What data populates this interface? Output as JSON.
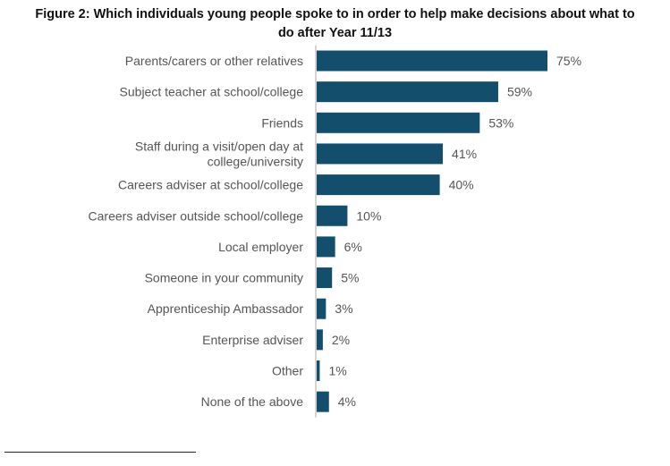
{
  "chart_data": {
    "type": "bar",
    "orientation": "horizontal",
    "title_lines": [
      "Figure 2: Which individuals young people spoke to in order to help make decisions about what to",
      "do after Year 11/13"
    ],
    "categories": [
      [
        "Parents/carers or other relatives"
      ],
      [
        "Subject teacher at school/college"
      ],
      [
        "Friends"
      ],
      [
        "Staff during a visit/open day at",
        "college/university"
      ],
      [
        "Careers adviser at school/college"
      ],
      [
        "Careers adviser outside school/college"
      ],
      [
        "Local employer"
      ],
      [
        "Someone in your community"
      ],
      [
        "Apprenticeship Ambassador"
      ],
      [
        "Enterprise adviser"
      ],
      [
        "Other"
      ],
      [
        "None of the above"
      ]
    ],
    "values": [
      75,
      59,
      53,
      41,
      40,
      10,
      6,
      5,
      3,
      2,
      1,
      4
    ],
    "value_labels": [
      "75%",
      "59%",
      "53%",
      "41%",
      "40%",
      "10%",
      "6%",
      "5%",
      "3%",
      "2%",
      "1%",
      "4%"
    ],
    "unit": "%",
    "xlim": [
      0,
      100
    ],
    "grid": false,
    "legend": "none",
    "bar_color": "#134f6d",
    "text_color": "#555555",
    "axis_color": "#aaaaaa"
  }
}
